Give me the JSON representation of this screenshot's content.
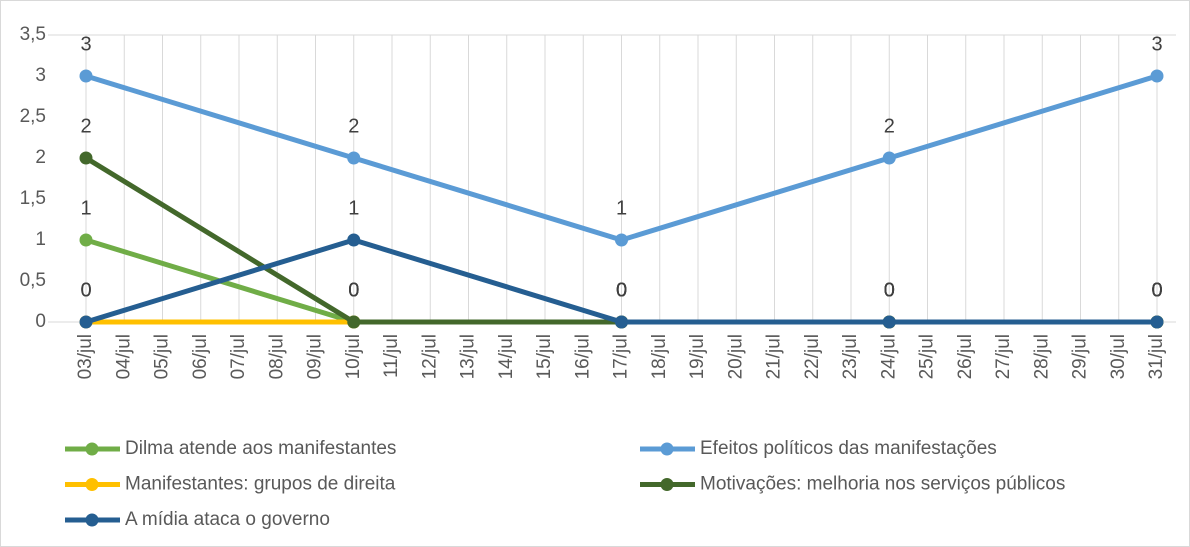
{
  "chart_data": {
    "type": "line",
    "categories": [
      "03/jul",
      "04/jul",
      "05/jul",
      "06/jul",
      "07/jul",
      "08/jul",
      "09/jul",
      "10/jul",
      "11/jul",
      "12/jul",
      "13/jul",
      "14/jul",
      "15/jul",
      "16/jul",
      "17/jul",
      "18/jul",
      "19/jul",
      "20/jul",
      "21/jul",
      "22/jul",
      "23/jul",
      "24/jul",
      "25/jul",
      "26/jul",
      "27/jul",
      "28/jul",
      "29/jul",
      "30/jul",
      "31/jul"
    ],
    "x": [
      "03/jul",
      "10/jul",
      "17/jul",
      "24/jul",
      "31/jul"
    ],
    "series": [
      {
        "name": "Dilma atende aos manifestantes",
        "color": "#70ad47",
        "values": [
          1,
          0,
          0,
          0,
          0
        ]
      },
      {
        "name": "Efeitos políticos das manifestações",
        "color": "#5b9bd5",
        "values": [
          3,
          2,
          1,
          2,
          3
        ]
      },
      {
        "name": "Manifestantes: grupos de direita",
        "color": "#ffc000",
        "values": [
          0,
          0,
          0,
          0,
          0
        ]
      },
      {
        "name": "Motivações: melhoria nos serviços públicos",
        "color": "#43682b",
        "values": [
          2,
          0,
          0,
          0,
          0
        ]
      },
      {
        "name": "A mídia ataca o governo",
        "color": "#255e91",
        "values": [
          0,
          1,
          0,
          0,
          0
        ]
      }
    ],
    "ylim": [
      0,
      3.5
    ],
    "yticks": [
      0,
      {
        "value": 0.5,
        "label": "0,5"
      },
      1,
      {
        "value": 1.5,
        "label": "1,5"
      },
      2,
      {
        "value": 2.5,
        "label": "2,5"
      },
      3,
      {
        "value": 3.5,
        "label": "3,5"
      }
    ],
    "grid": true,
    "legend": "bottom"
  }
}
